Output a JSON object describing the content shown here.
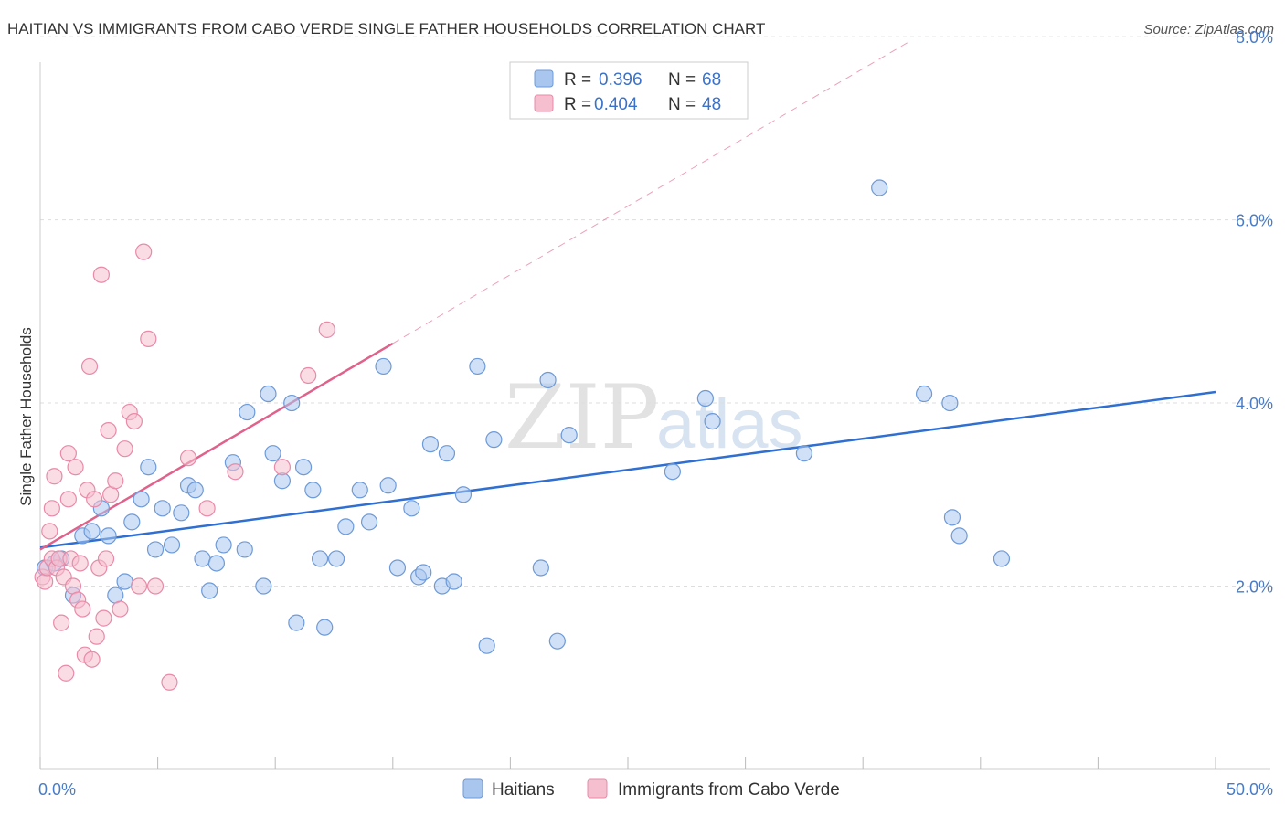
{
  "title": "HAITIAN VS IMMIGRANTS FROM CABO VERDE SINGLE FATHER HOUSEHOLDS CORRELATION CHART",
  "source": "Source: ZipAtlas.com",
  "watermark": {
    "zip": "ZIP",
    "atlas": "atlas"
  },
  "colors": {
    "haitians_fill": "#a9c6ee",
    "haitians_stroke": "#6d9ad8",
    "haitians_line": "#2f6fd1",
    "caboverde_fill": "#f6bfd0",
    "caboverde_stroke": "#e88aa8",
    "caboverde_line": "#e0628b",
    "grid": "#dddddd",
    "axis_text": "#4a7cc6"
  },
  "legend_top": {
    "rows": [
      {
        "r_label": "R =",
        "r_value": "0.396",
        "n_label": "N =",
        "n_value": "68"
      },
      {
        "r_label": "R =",
        "r_value": "0.404",
        "n_label": "N =",
        "n_value": "48"
      }
    ]
  },
  "legend_bottom": [
    "Haitians",
    "Immigrants from Cabo Verde"
  ],
  "chart_data": {
    "type": "scatter",
    "title": "HAITIAN VS IMMIGRANTS FROM CABO VERDE SINGLE FATHER HOUSEHOLDS CORRELATION CHART",
    "xlabel": "",
    "ylabel": "Single Father Households",
    "xlim": [
      0,
      50
    ],
    "ylim": [
      0,
      8.4
    ],
    "x_tick_labels": [
      "0.0%",
      "50.0%"
    ],
    "y_ticks": [
      2,
      4,
      6,
      8
    ],
    "y_tick_labels": [
      "2.0%",
      "4.0%",
      "6.0%",
      "8.0%"
    ],
    "grid": true,
    "series": [
      {
        "name": "Haitians",
        "points": [
          [
            0.2,
            2.2
          ],
          [
            0.6,
            2.25
          ],
          [
            0.9,
            2.3
          ],
          [
            1.4,
            1.9
          ],
          [
            1.8,
            2.55
          ],
          [
            2.2,
            2.6
          ],
          [
            2.6,
            2.85
          ],
          [
            2.9,
            2.55
          ],
          [
            3.2,
            1.9
          ],
          [
            3.6,
            2.05
          ],
          [
            3.9,
            2.7
          ],
          [
            4.3,
            2.95
          ],
          [
            4.6,
            3.3
          ],
          [
            4.9,
            2.4
          ],
          [
            5.2,
            2.85
          ],
          [
            5.6,
            2.45
          ],
          [
            6.0,
            2.8
          ],
          [
            6.3,
            3.1
          ],
          [
            6.6,
            3.05
          ],
          [
            6.9,
            2.3
          ],
          [
            7.2,
            1.95
          ],
          [
            7.5,
            2.25
          ],
          [
            7.8,
            2.45
          ],
          [
            8.2,
            3.35
          ],
          [
            8.7,
            2.4
          ],
          [
            8.8,
            3.9
          ],
          [
            9.5,
            2.0
          ],
          [
            9.7,
            4.1
          ],
          [
            9.9,
            3.45
          ],
          [
            10.3,
            3.15
          ],
          [
            10.7,
            4.0
          ],
          [
            10.9,
            1.6
          ],
          [
            11.2,
            3.3
          ],
          [
            11.6,
            3.05
          ],
          [
            11.9,
            2.3
          ],
          [
            12.1,
            1.55
          ],
          [
            12.6,
            2.3
          ],
          [
            13.0,
            2.65
          ],
          [
            13.6,
            3.05
          ],
          [
            14.0,
            2.7
          ],
          [
            14.6,
            4.4
          ],
          [
            14.8,
            3.1
          ],
          [
            15.2,
            2.2
          ],
          [
            15.8,
            2.85
          ],
          [
            16.1,
            2.1
          ],
          [
            16.3,
            2.15
          ],
          [
            16.6,
            3.55
          ],
          [
            17.1,
            2.0
          ],
          [
            17.3,
            3.45
          ],
          [
            17.6,
            2.05
          ],
          [
            18.0,
            3.0
          ],
          [
            18.6,
            4.4
          ],
          [
            19.0,
            1.35
          ],
          [
            19.3,
            3.6
          ],
          [
            21.3,
            2.2
          ],
          [
            21.6,
            4.25
          ],
          [
            22.0,
            1.4
          ],
          [
            22.5,
            3.65
          ],
          [
            26.9,
            3.25
          ],
          [
            28.3,
            4.05
          ],
          [
            28.6,
            3.8
          ],
          [
            32.5,
            3.45
          ],
          [
            35.7,
            6.35
          ],
          [
            37.6,
            4.1
          ],
          [
            38.7,
            4.0
          ],
          [
            38.8,
            2.75
          ],
          [
            39.1,
            2.55
          ],
          [
            40.9,
            2.3
          ]
        ]
      },
      {
        "name": "Immigrants from Cabo Verde",
        "points": [
          [
            0.1,
            2.1
          ],
          [
            0.2,
            2.05
          ],
          [
            0.3,
            2.2
          ],
          [
            0.4,
            2.6
          ],
          [
            0.5,
            2.3
          ],
          [
            0.5,
            2.85
          ],
          [
            0.6,
            3.2
          ],
          [
            0.7,
            2.2
          ],
          [
            0.8,
            2.3
          ],
          [
            0.9,
            1.6
          ],
          [
            1.0,
            2.1
          ],
          [
            1.1,
            1.05
          ],
          [
            1.2,
            2.95
          ],
          [
            1.2,
            3.45
          ],
          [
            1.3,
            2.3
          ],
          [
            1.4,
            2.0
          ],
          [
            1.5,
            3.3
          ],
          [
            1.6,
            1.85
          ],
          [
            1.7,
            2.25
          ],
          [
            1.8,
            1.75
          ],
          [
            1.9,
            1.25
          ],
          [
            2.0,
            3.05
          ],
          [
            2.1,
            4.4
          ],
          [
            2.2,
            1.2
          ],
          [
            2.3,
            2.95
          ],
          [
            2.4,
            1.45
          ],
          [
            2.5,
            2.2
          ],
          [
            2.6,
            5.4
          ],
          [
            2.7,
            1.65
          ],
          [
            2.8,
            2.3
          ],
          [
            2.9,
            3.7
          ],
          [
            3.0,
            3.0
          ],
          [
            3.2,
            3.15
          ],
          [
            3.4,
            1.75
          ],
          [
            3.6,
            3.5
          ],
          [
            3.8,
            3.9
          ],
          [
            4.0,
            3.8
          ],
          [
            4.2,
            2.0
          ],
          [
            4.4,
            5.65
          ],
          [
            4.6,
            4.7
          ],
          [
            4.9,
            2.0
          ],
          [
            5.5,
            0.95
          ],
          [
            6.3,
            3.4
          ],
          [
            7.1,
            2.85
          ],
          [
            8.3,
            3.25
          ],
          [
            10.3,
            3.3
          ],
          [
            11.4,
            4.3
          ],
          [
            12.2,
            4.8
          ]
        ]
      }
    ],
    "trendlines": [
      {
        "series": "Haitians",
        "x": [
          0,
          50
        ],
        "y": [
          2.42,
          4.12
        ]
      },
      {
        "series": "Immigrants from Cabo Verde",
        "x": [
          0,
          15
        ],
        "y": [
          2.4,
          4.65
        ],
        "dashed_extension_to_x": 37
      }
    ]
  }
}
